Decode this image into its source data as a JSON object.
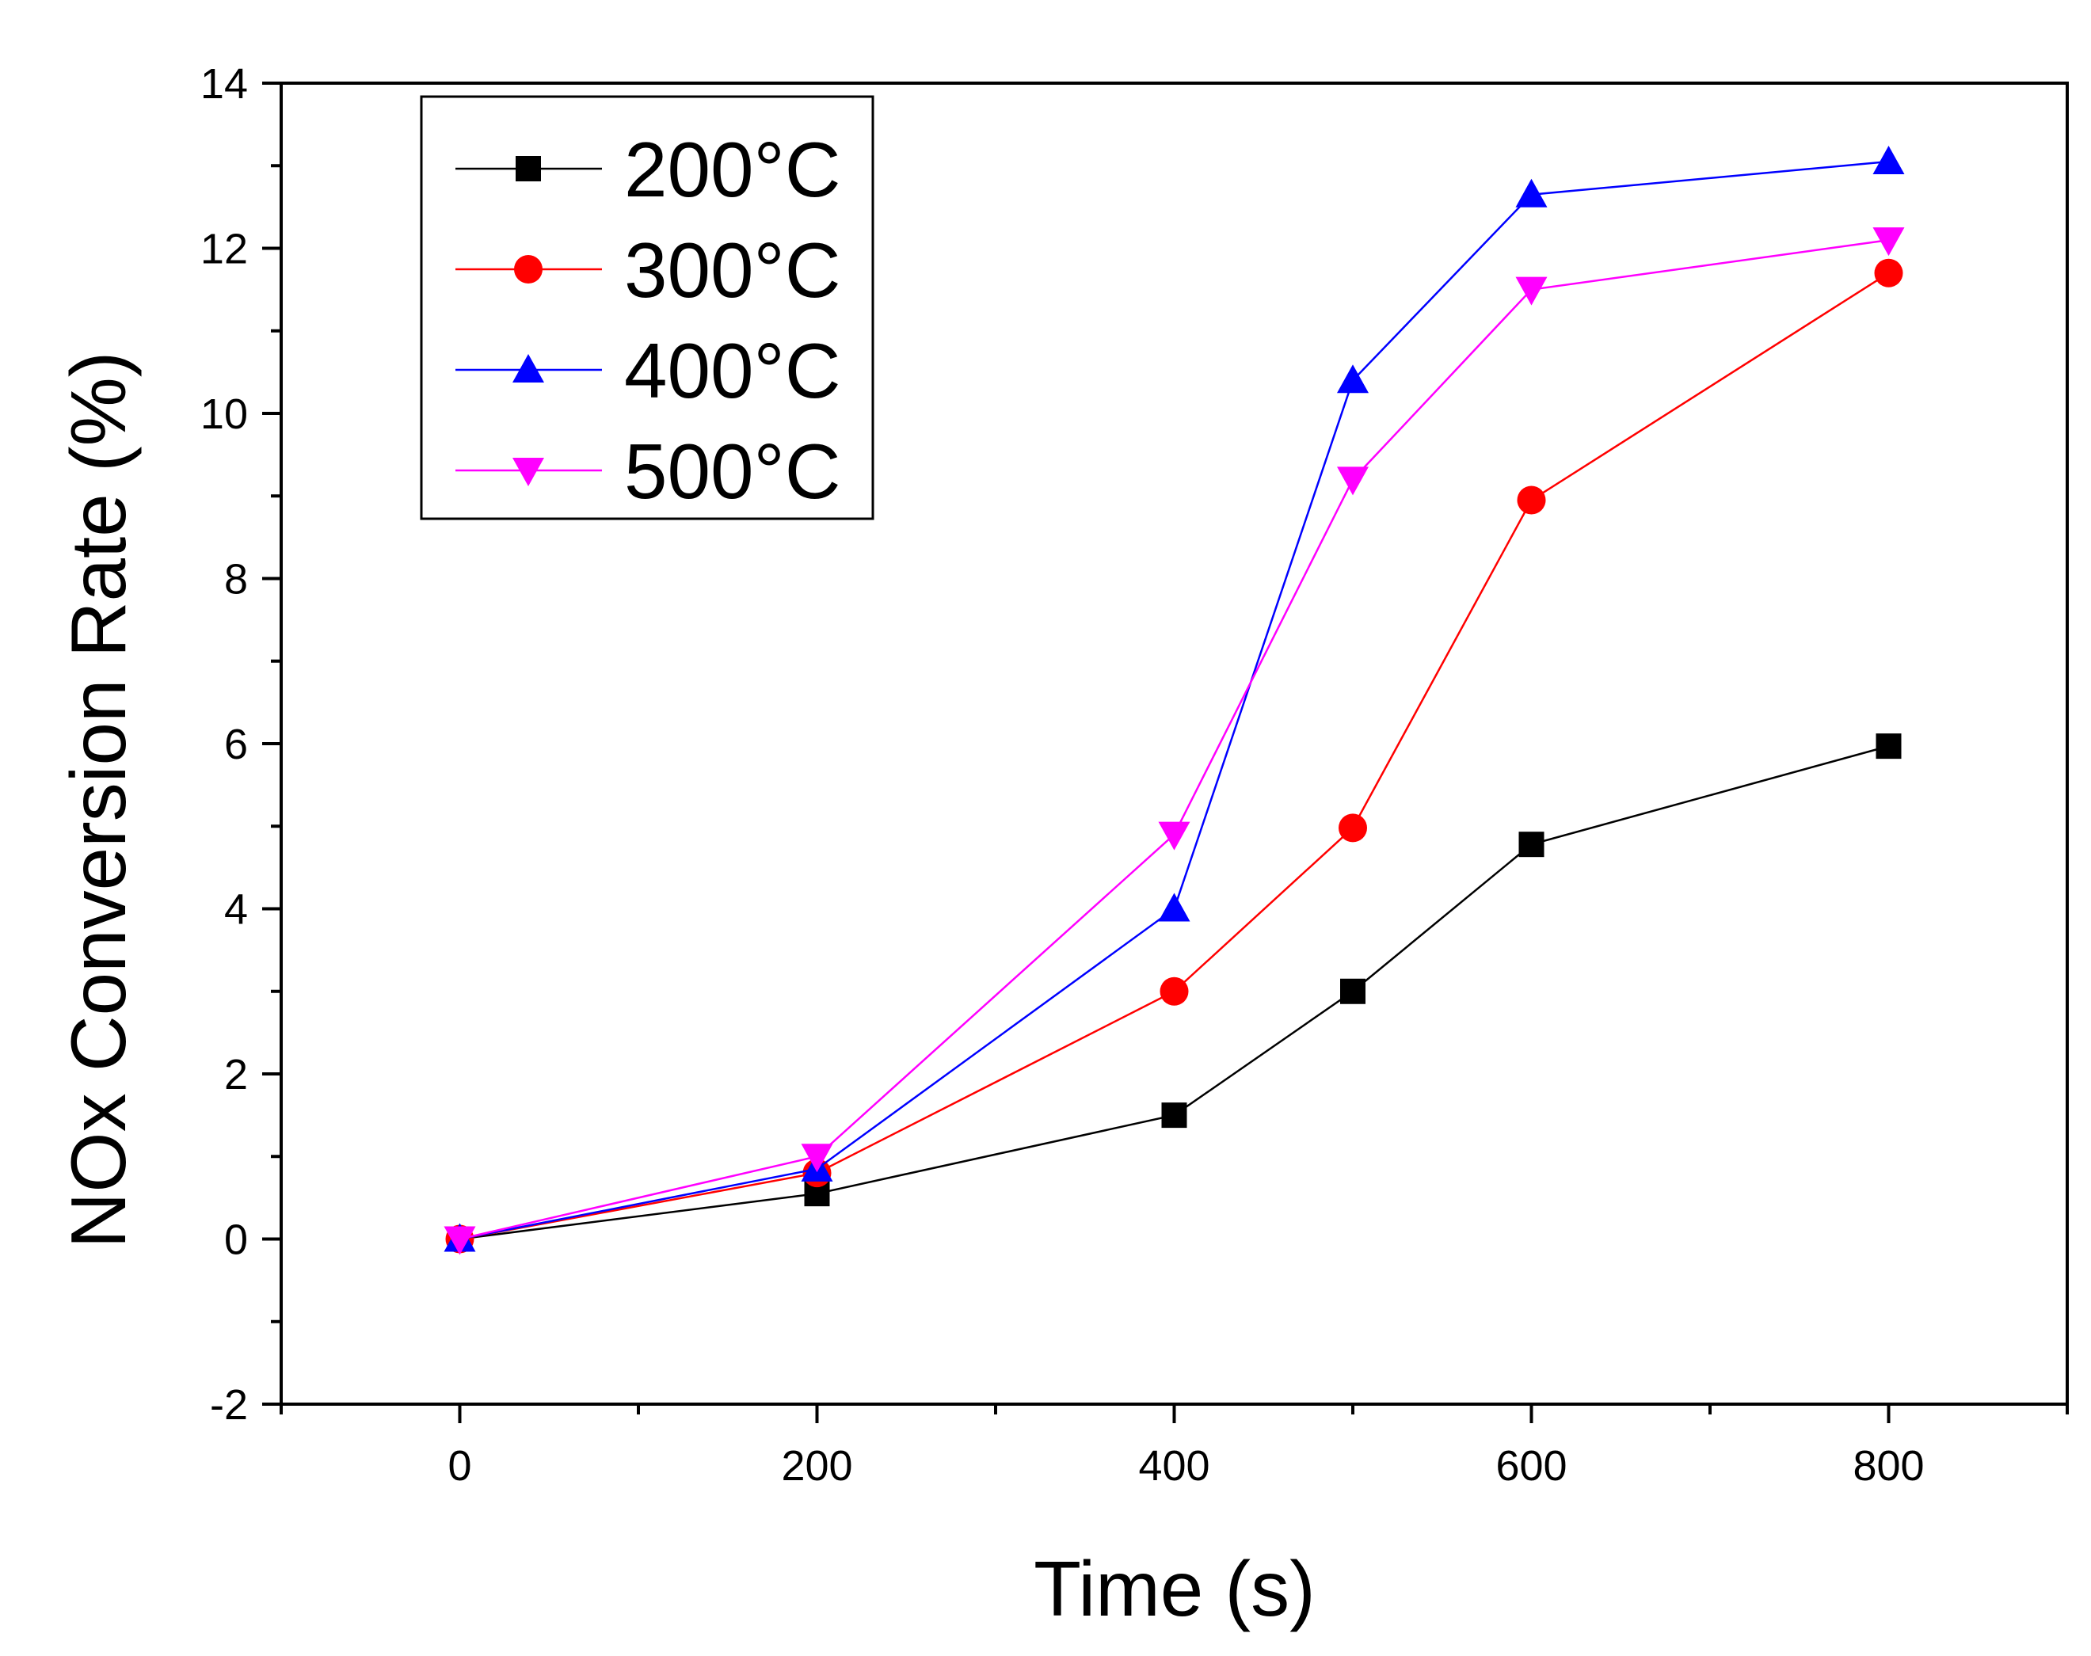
{
  "chart_data": {
    "type": "line",
    "title": "",
    "xlabel": "Time (s)",
    "ylabel": "NOx Conversion Rate (%)",
    "xlim": [
      -100,
      900
    ],
    "ylim": [
      -2,
      14
    ],
    "xticks": [
      0,
      200,
      400,
      600,
      800
    ],
    "xtick_labels": [
      "0",
      "200",
      "400",
      "600",
      "800"
    ],
    "xminor_ticks": [
      -100,
      100,
      300,
      500,
      700,
      900
    ],
    "yticks": [
      -2,
      0,
      2,
      4,
      6,
      8,
      10,
      12,
      14
    ],
    "ytick_labels": [
      "-2",
      "0",
      "2",
      "4",
      "6",
      "8",
      "10",
      "12",
      "14"
    ],
    "yminor_ticks": [
      -1,
      1,
      3,
      5,
      7,
      9,
      11,
      13
    ],
    "grid": false,
    "legend_position": "top-left",
    "x": [
      0,
      200,
      400,
      500,
      600,
      800
    ],
    "series": [
      {
        "name": "200°C",
        "marker": "square",
        "color": "#000000",
        "values": [
          0,
          0.55,
          1.5,
          3.0,
          4.78,
          5.97
        ]
      },
      {
        "name": "300°C",
        "marker": "circle",
        "color": "#ff0000",
        "values": [
          0,
          0.8,
          3.0,
          4.98,
          8.95,
          11.7
        ]
      },
      {
        "name": "400°C",
        "marker": "triangle-up",
        "color": "#0000ff",
        "values": [
          0,
          0.85,
          4.0,
          10.4,
          12.65,
          13.05
        ]
      },
      {
        "name": "500°C",
        "marker": "triangle-down",
        "color": "#ff00ff",
        "values": [
          0,
          1.0,
          4.9,
          9.2,
          11.5,
          12.1
        ]
      }
    ]
  }
}
